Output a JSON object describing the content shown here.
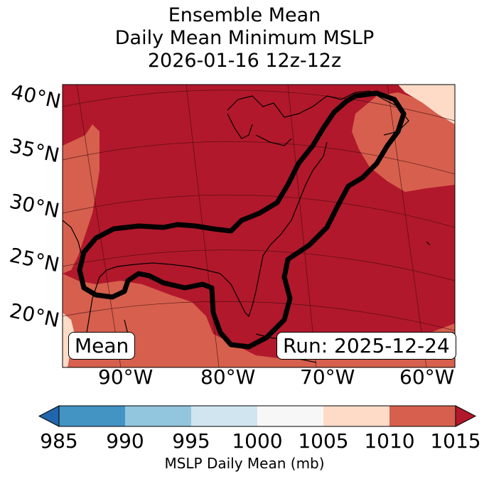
{
  "title": {
    "line1": "Ensemble Mean",
    "line2": "Daily Mean Minimum MSLP",
    "line3": "2026-01-16 12z-12z"
  },
  "lat_labels": [
    "40°N",
    "35°N",
    "30°N",
    "25°N",
    "20°N"
  ],
  "lon_labels": [
    "90°W",
    "80°W",
    "70°W",
    "60°W"
  ],
  "mean_box": "Mean",
  "run_box": "Run: 2025-12-24",
  "colorbar": {
    "ticks": [
      "985",
      "990",
      "995",
      "1000",
      "1005",
      "1010",
      "1015"
    ],
    "label": "MSLP Daily Mean (mb)",
    "colors": [
      "#2166ac",
      "#4393c3",
      "#92c5de",
      "#d1e5f0",
      "#f7f7f7",
      "#fddbc7",
      "#d6604d",
      "#b2182b"
    ]
  },
  "map_colors": {
    "dark_red": "#b2182b",
    "mid_red": "#d6604d",
    "light": "#fddbc7"
  }
}
